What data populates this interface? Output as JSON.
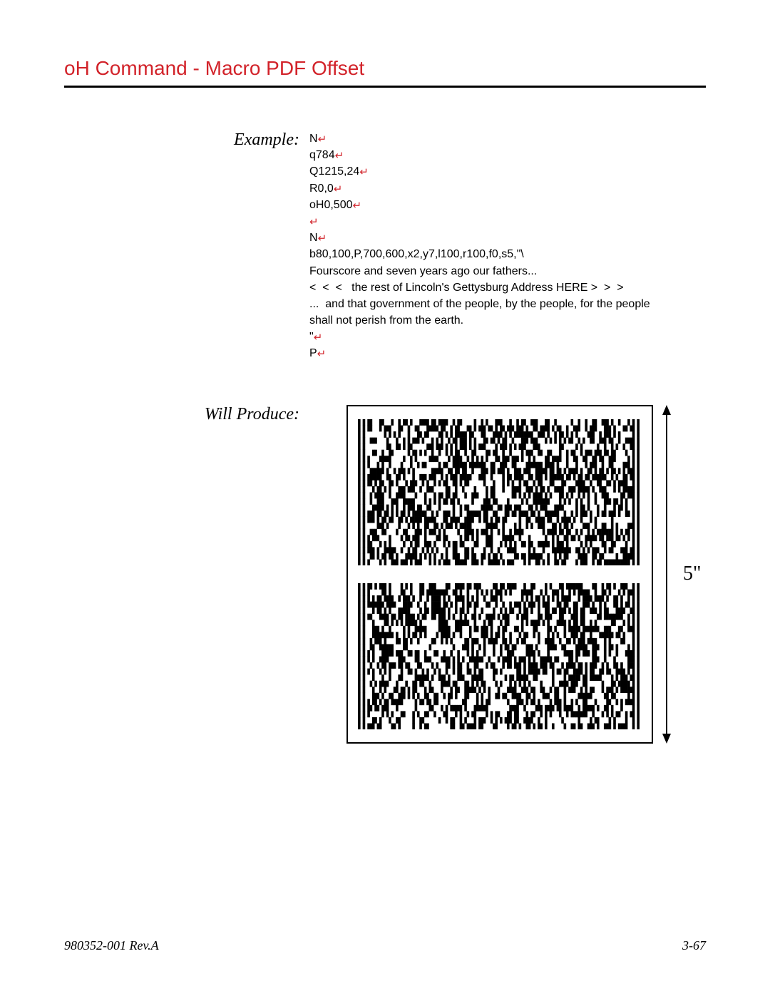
{
  "title": "oH Command - Macro PDF Offset",
  "example": {
    "label": "Example:",
    "lines": [
      {
        "text": "N",
        "crlf": true
      },
      {
        "text": "q784",
        "crlf": true
      },
      {
        "text": "Q1215,24",
        "crlf": true
      },
      {
        "text": "R0,0",
        "crlf": true
      },
      {
        "text": "oH0,500",
        "crlf": true
      },
      {
        "text": "",
        "crlf": true
      },
      {
        "text": "N",
        "crlf": true
      },
      {
        "text": "b80,100,P,700,600,x2,y7,l100,r100,f0,s5,\"\\",
        "crlf": false
      },
      {
        "text": "Fourscore and seven years ago our fathers...",
        "crlf": false
      },
      {
        "text": "<  <  <   the rest of Lincoln's Gettysburg Address HERE >  >  >",
        "crlf": false
      },
      {
        "text": "...  and that government of the people, by the people, for the people",
        "crlf": false
      },
      {
        "text": "shall not perish from the earth.",
        "crlf": false
      },
      {
        "text": "\"",
        "crlf": true
      },
      {
        "text": "P",
        "crlf": true
      }
    ]
  },
  "produce": {
    "label": "Will Produce:",
    "dimension": "5\"",
    "barcode": {
      "type": "pdf417-macro",
      "count": 2,
      "box_border_color": "#000000",
      "bar_color": "#000000",
      "background_color": "#ffffff"
    }
  },
  "footer": {
    "left": "980352-001 Rev.A",
    "right": "3-67"
  },
  "colors": {
    "accent": "#d2232a",
    "text": "#000000",
    "background": "#ffffff"
  },
  "crlf_glyph": "↵"
}
